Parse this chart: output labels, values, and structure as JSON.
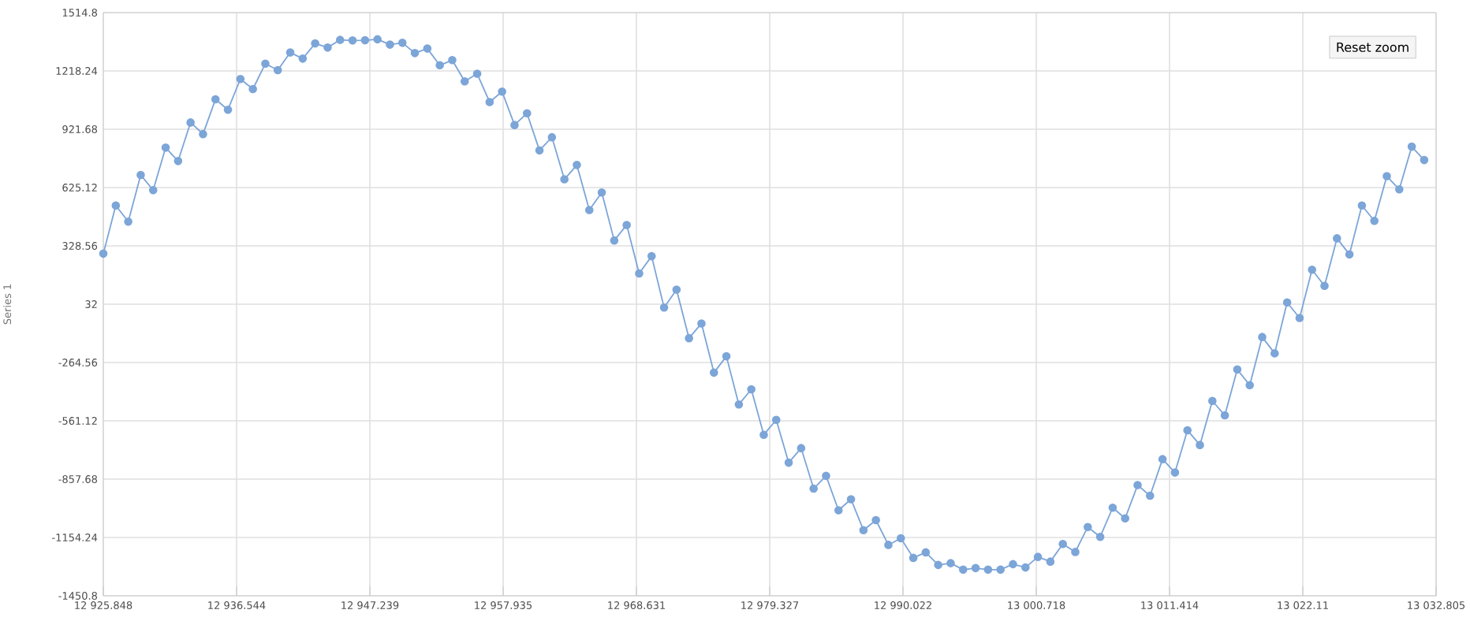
{
  "chart_data": {
    "type": "line",
    "ylabel": "Series 1",
    "annotations": [
      "Reset zoom"
    ],
    "xlim": [
      12925.848,
      13032.805
    ],
    "xticks": [
      {
        "value": 12925.848,
        "label": "12 925.848"
      },
      {
        "value": 12936.544,
        "label": "12 936.544"
      },
      {
        "value": 12947.239,
        "label": "12 947.239"
      },
      {
        "value": 12957.935,
        "label": "12 957.935"
      },
      {
        "value": 12968.631,
        "label": "12 968.631"
      },
      {
        "value": 12979.327,
        "label": "12 979.327"
      },
      {
        "value": 12990.022,
        "label": "12 990.022"
      },
      {
        "value": 13000.718,
        "label": "13 000.718"
      },
      {
        "value": 13011.414,
        "label": "13 011.414"
      },
      {
        "value": 13022.11,
        "label": "13 022.11"
      },
      {
        "value": 13032.805,
        "label": "13 032.805"
      }
    ],
    "ylim": [
      -1450.8,
      1514.8
    ],
    "yticks": [
      -1450.8,
      -1154.24,
      -857.68,
      -561.12,
      -264.56,
      32,
      328.56,
      625.12,
      921.68,
      1218.24,
      1514.8
    ],
    "grid": true,
    "marker": "circle",
    "line_style": "solid",
    "x": [
      12925.85,
      12926.85,
      12927.85,
      12928.85,
      12929.85,
      12930.85,
      12931.85,
      12932.85,
      12933.85,
      12934.85,
      12935.85,
      12936.85,
      12937.85,
      12938.85,
      12939.85,
      12940.85,
      12941.85,
      12942.85,
      12943.85,
      12944.85,
      12945.85,
      12946.85,
      12947.85,
      12948.85,
      12949.85,
      12950.85,
      12951.85,
      12952.85,
      12953.85,
      12954.85,
      12955.85,
      12956.85,
      12957.85,
      12958.85,
      12959.85,
      12960.85,
      12961.85,
      12962.85,
      12963.85,
      12964.85,
      12965.85,
      12966.85,
      12967.85,
      12968.85,
      12969.85,
      12970.85,
      12971.85,
      12972.85,
      12973.85,
      12974.85,
      12975.85,
      12976.85,
      12977.85,
      12978.85,
      12979.85,
      12980.85,
      12981.85,
      12982.85,
      12983.85,
      12984.85,
      12985.85,
      12986.85,
      12987.85,
      12988.85,
      12989.85,
      12990.85,
      12991.85,
      12992.85,
      12993.85,
      12994.85,
      12995.85,
      12996.85,
      12997.85,
      12998.85,
      12999.85,
      13000.85,
      13001.85,
      13002.85,
      13003.85,
      13004.85,
      13005.85,
      13006.85,
      13007.85,
      13008.85,
      13009.85,
      13010.85,
      13011.85,
      13012.85,
      13013.85,
      13014.85,
      13015.85,
      13016.85,
      13017.85,
      13018.85,
      13019.85,
      13020.85,
      13021.85,
      13022.85,
      13023.85,
      13024.85,
      13025.85,
      13026.85,
      13027.85,
      13028.85,
      13029.85,
      13030.85,
      13031.85
    ],
    "series": [
      {
        "color": "#7ca5d8",
        "values": [
          289,
          534,
          452,
          689,
          612,
          828,
          760,
          956,
          897,
          1074,
          1021,
          1177,
          1126,
          1255,
          1222,
          1312,
          1281,
          1358,
          1337,
          1376,
          1373,
          1374,
          1379,
          1352,
          1361,
          1309,
          1332,
          1247,
          1273,
          1165,
          1204,
          1060,
          1113,
          943,
          1003,
          814,
          881,
          667,
          740,
          511,
          600,
          356,
          435,
          188,
          276,
          15,
          106,
          -141,
          -66,
          -316,
          -233,
          -478,
          -401,
          -632,
          -556,
          -774,
          -700,
          -906,
          -841,
          -1016,
          -960,
          -1117,
          -1066,
          -1192,
          -1158,
          -1258,
          -1230,
          -1294,
          -1285,
          -1318,
          -1310,
          -1318,
          -1318,
          -1290,
          -1307,
          -1253,
          -1277,
          -1187,
          -1228,
          -1101,
          -1151,
          -1003,
          -1057,
          -888,
          -942,
          -756,
          -824,
          -609,
          -684,
          -460,
          -533,
          -300,
          -380,
          -135,
          -218,
          41,
          -38,
          207,
          125,
          367,
          285,
          534,
          456,
          683,
          616,
          833,
          765
        ]
      }
    ]
  }
}
